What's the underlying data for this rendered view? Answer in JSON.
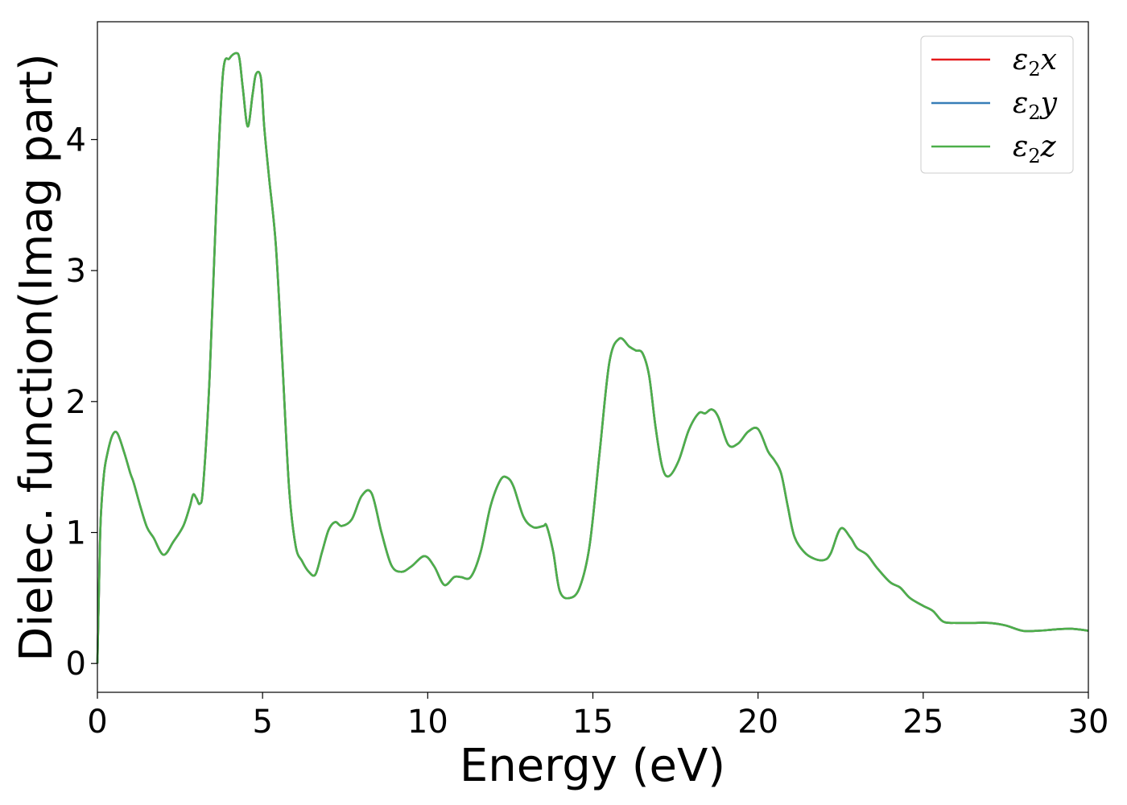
{
  "chart_data": {
    "type": "line",
    "title": "",
    "xlabel": "Energy (eV)",
    "ylabel": "Dielec. function(Imag part)",
    "xlim": [
      0,
      30
    ],
    "ylim": [
      -0.22,
      4.9
    ],
    "xticks": [
      0,
      5,
      10,
      15,
      20,
      25,
      30
    ],
    "yticks": [
      0,
      1,
      2,
      3,
      4
    ],
    "grid": false,
    "legend_position": "top-right",
    "legend": [
      {
        "base": "ε",
        "sub": "2",
        "axis": "x",
        "color": "#e41a1c"
      },
      {
        "base": "ε",
        "sub": "2",
        "axis": "y",
        "color": "#377eb8"
      },
      {
        "base": "ε",
        "sub": "2",
        "axis": "z",
        "color": "#4daf4a"
      }
    ],
    "x": [
      0,
      0.05,
      0.1,
      0.2,
      0.3,
      0.45,
      0.6,
      0.8,
      1.0,
      1.1,
      1.3,
      1.5,
      1.7,
      2.0,
      2.3,
      2.6,
      2.8,
      2.9,
      3.0,
      3.1,
      3.2,
      3.4,
      3.6,
      3.8,
      4.0,
      4.2,
      4.3,
      4.4,
      4.55,
      4.7,
      4.8,
      4.95,
      5.05,
      5.2,
      5.4,
      5.6,
      5.8,
      6.0,
      6.2,
      6.4,
      6.6,
      6.8,
      7.0,
      7.2,
      7.4,
      7.7,
      8.0,
      8.3,
      8.6,
      8.9,
      9.2,
      9.5,
      9.9,
      10.2,
      10.5,
      10.8,
      11.0,
      11.3,
      11.6,
      11.9,
      12.2,
      12.4,
      12.6,
      12.9,
      13.2,
      13.5,
      13.6,
      13.8,
      14.0,
      14.3,
      14.6,
      14.9,
      15.2,
      15.5,
      15.8,
      16.1,
      16.3,
      16.5,
      16.7,
      16.9,
      17.1,
      17.3,
      17.6,
      17.9,
      18.2,
      18.4,
      18.6,
      18.8,
      19.1,
      19.4,
      19.7,
      20.0,
      20.3,
      20.5,
      20.7,
      20.9,
      21.1,
      21.4,
      21.7,
      22.0,
      22.2,
      22.5,
      22.8,
      23.0,
      23.3,
      23.6,
      24.0,
      24.3,
      24.6,
      25.0,
      25.3,
      25.6,
      26.0,
      26.5,
      27.0,
      27.5,
      28.0,
      28.5,
      29.0,
      29.5,
      30.0
    ],
    "series": [
      {
        "name": "ε2x",
        "color": "#e41a1c",
        "values": [
          0,
          0.6,
          1.1,
          1.45,
          1.6,
          1.74,
          1.76,
          1.62,
          1.45,
          1.38,
          1.2,
          1.04,
          0.96,
          0.83,
          0.93,
          1.05,
          1.2,
          1.29,
          1.26,
          1.22,
          1.35,
          2.2,
          3.5,
          4.5,
          4.62,
          4.66,
          4.62,
          4.4,
          4.1,
          4.35,
          4.5,
          4.47,
          4.1,
          3.7,
          3.2,
          2.3,
          1.35,
          0.9,
          0.78,
          0.7,
          0.68,
          0.85,
          1.02,
          1.08,
          1.05,
          1.1,
          1.28,
          1.3,
          1.0,
          0.75,
          0.7,
          0.74,
          0.82,
          0.74,
          0.6,
          0.66,
          0.66,
          0.66,
          0.85,
          1.2,
          1.4,
          1.42,
          1.35,
          1.12,
          1.04,
          1.05,
          1.05,
          0.85,
          0.55,
          0.5,
          0.58,
          0.9,
          1.6,
          2.3,
          2.48,
          2.42,
          2.39,
          2.37,
          2.2,
          1.8,
          1.5,
          1.43,
          1.55,
          1.78,
          1.91,
          1.91,
          1.94,
          1.88,
          1.67,
          1.68,
          1.77,
          1.79,
          1.62,
          1.55,
          1.45,
          1.2,
          0.97,
          0.85,
          0.8,
          0.79,
          0.84,
          1.03,
          0.96,
          0.88,
          0.83,
          0.73,
          0.62,
          0.58,
          0.5,
          0.44,
          0.4,
          0.32,
          0.31,
          0.31,
          0.31,
          0.29,
          0.25,
          0.25,
          0.26,
          0.265,
          0.25
        ]
      },
      {
        "name": "ε2y",
        "color": "#377eb8",
        "values": [
          0,
          0.6,
          1.1,
          1.45,
          1.6,
          1.74,
          1.76,
          1.62,
          1.45,
          1.38,
          1.2,
          1.04,
          0.96,
          0.83,
          0.93,
          1.05,
          1.2,
          1.29,
          1.26,
          1.22,
          1.35,
          2.2,
          3.5,
          4.5,
          4.62,
          4.66,
          4.62,
          4.4,
          4.1,
          4.35,
          4.5,
          4.47,
          4.1,
          3.7,
          3.2,
          2.3,
          1.35,
          0.9,
          0.78,
          0.7,
          0.68,
          0.85,
          1.02,
          1.08,
          1.05,
          1.1,
          1.28,
          1.3,
          1.0,
          0.75,
          0.7,
          0.74,
          0.82,
          0.74,
          0.6,
          0.66,
          0.66,
          0.66,
          0.85,
          1.2,
          1.4,
          1.42,
          1.35,
          1.12,
          1.04,
          1.05,
          1.05,
          0.85,
          0.55,
          0.5,
          0.58,
          0.9,
          1.6,
          2.3,
          2.48,
          2.42,
          2.39,
          2.37,
          2.2,
          1.8,
          1.5,
          1.43,
          1.55,
          1.78,
          1.91,
          1.91,
          1.94,
          1.88,
          1.67,
          1.68,
          1.77,
          1.79,
          1.62,
          1.55,
          1.45,
          1.2,
          0.97,
          0.85,
          0.8,
          0.79,
          0.84,
          1.03,
          0.96,
          0.88,
          0.83,
          0.73,
          0.62,
          0.58,
          0.5,
          0.44,
          0.4,
          0.32,
          0.31,
          0.31,
          0.31,
          0.29,
          0.25,
          0.25,
          0.26,
          0.265,
          0.25
        ]
      },
      {
        "name": "ε2z",
        "color": "#4daf4a",
        "values": [
          0,
          0.6,
          1.1,
          1.45,
          1.6,
          1.74,
          1.76,
          1.62,
          1.45,
          1.38,
          1.2,
          1.04,
          0.96,
          0.83,
          0.93,
          1.05,
          1.2,
          1.29,
          1.26,
          1.22,
          1.35,
          2.2,
          3.5,
          4.5,
          4.62,
          4.66,
          4.62,
          4.4,
          4.1,
          4.35,
          4.5,
          4.47,
          4.1,
          3.7,
          3.2,
          2.3,
          1.35,
          0.9,
          0.78,
          0.7,
          0.68,
          0.85,
          1.02,
          1.08,
          1.05,
          1.1,
          1.28,
          1.3,
          1.0,
          0.75,
          0.7,
          0.74,
          0.82,
          0.74,
          0.6,
          0.66,
          0.66,
          0.66,
          0.85,
          1.2,
          1.4,
          1.42,
          1.35,
          1.12,
          1.04,
          1.05,
          1.05,
          0.85,
          0.55,
          0.5,
          0.58,
          0.9,
          1.6,
          2.3,
          2.48,
          2.42,
          2.39,
          2.37,
          2.2,
          1.8,
          1.5,
          1.43,
          1.55,
          1.78,
          1.91,
          1.91,
          1.94,
          1.88,
          1.67,
          1.68,
          1.77,
          1.79,
          1.62,
          1.55,
          1.45,
          1.2,
          0.97,
          0.85,
          0.8,
          0.79,
          0.84,
          1.03,
          0.96,
          0.88,
          0.83,
          0.73,
          0.62,
          0.58,
          0.5,
          0.44,
          0.4,
          0.32,
          0.31,
          0.31,
          0.31,
          0.29,
          0.25,
          0.25,
          0.26,
          0.265,
          0.25
        ]
      }
    ]
  }
}
